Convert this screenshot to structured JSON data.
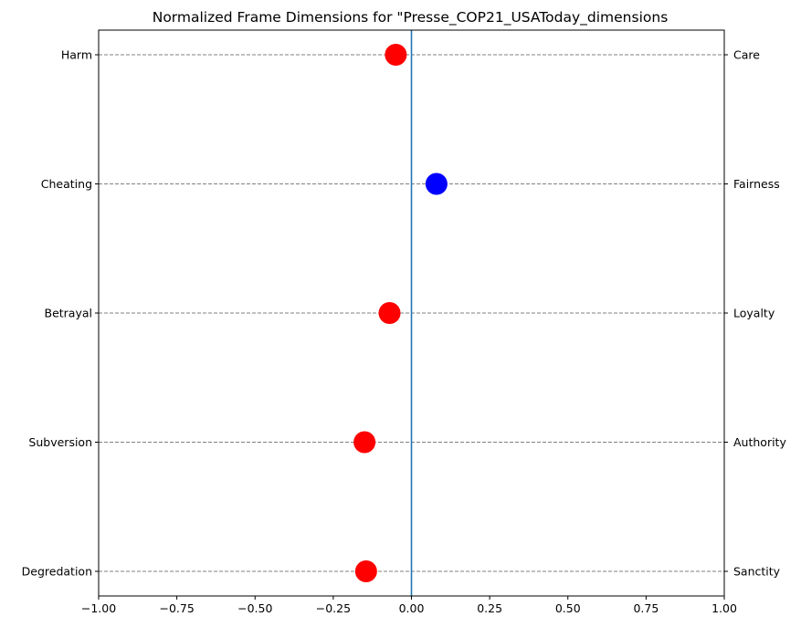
{
  "chart_data": {
    "type": "scatter",
    "title": "Normalized Frame Dimensions for \"Presse_COP21_USAToday_dimensions",
    "xlim": [
      -1.0,
      1.0
    ],
    "x_ticks": [
      "−1.00",
      "−0.75",
      "−0.50",
      "−0.25",
      "0.00",
      "0.25",
      "0.50",
      "0.75",
      "1.00"
    ],
    "x_tick_values": [
      -1.0,
      -0.75,
      -0.5,
      -0.25,
      0.0,
      0.25,
      0.5,
      0.75,
      1.0
    ],
    "grid": "horizontal dashed lines at each dimension",
    "center_line_x": 0.0,
    "center_line_color": "#1f77b4",
    "positive_color": "#0000ff",
    "negative_color": "#ff0000",
    "points": [
      {
        "left_label": "Harm",
        "right_label": "Care",
        "value": -0.05
      },
      {
        "left_label": "Cheating",
        "right_label": "Fairness",
        "value": 0.08
      },
      {
        "left_label": "Betrayal",
        "right_label": "Loyalty",
        "value": -0.07
      },
      {
        "left_label": "Subversion",
        "right_label": "Authority",
        "value": -0.15
      },
      {
        "left_label": "Degredation",
        "right_label": "Sanctity",
        "value": -0.145
      }
    ]
  }
}
